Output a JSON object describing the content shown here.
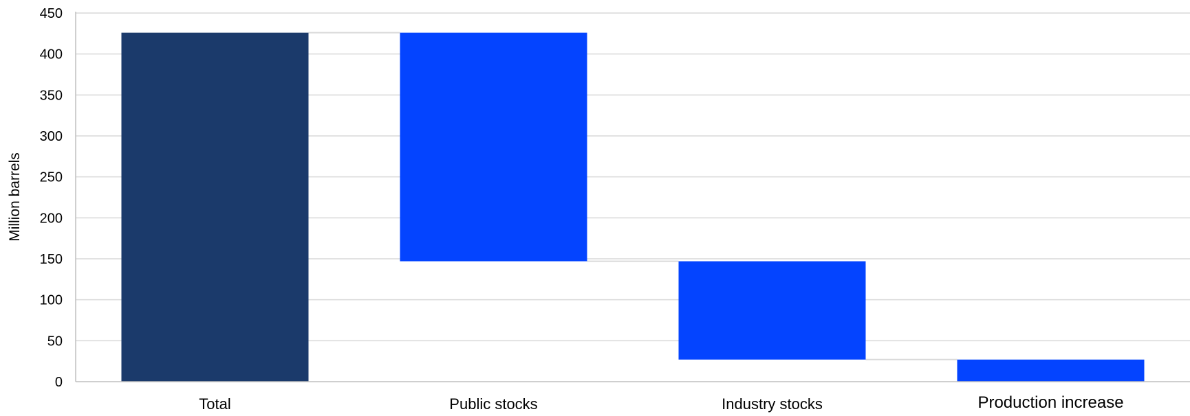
{
  "chart_data": {
    "type": "bar",
    "subtype": "waterfall",
    "title": "",
    "xlabel": "",
    "ylabel": "Million barrels",
    "ylim": [
      0,
      450
    ],
    "yticks": [
      0,
      50,
      100,
      150,
      200,
      250,
      300,
      350,
      400,
      450
    ],
    "grid": true,
    "legend": "none",
    "categories": [
      "Total",
      "Public stocks",
      "Industry stocks",
      "Production increase"
    ],
    "bars": [
      {
        "category": "Total",
        "bottom": 0,
        "top": 426,
        "kind": "total"
      },
      {
        "category": "Public stocks",
        "bottom": 147,
        "top": 426,
        "kind": "decrease"
      },
      {
        "category": "Industry stocks",
        "bottom": 27,
        "top": 147,
        "kind": "decrease"
      },
      {
        "category": "Production increase",
        "bottom": 0,
        "top": 27,
        "kind": "decrease"
      }
    ],
    "values": [
      426,
      279,
      120,
      27
    ],
    "colors": {
      "total": "#1b3a6b",
      "decrease": "#0444ff",
      "grid": "#d9d9d9",
      "axis": "#bfbfbf"
    }
  }
}
